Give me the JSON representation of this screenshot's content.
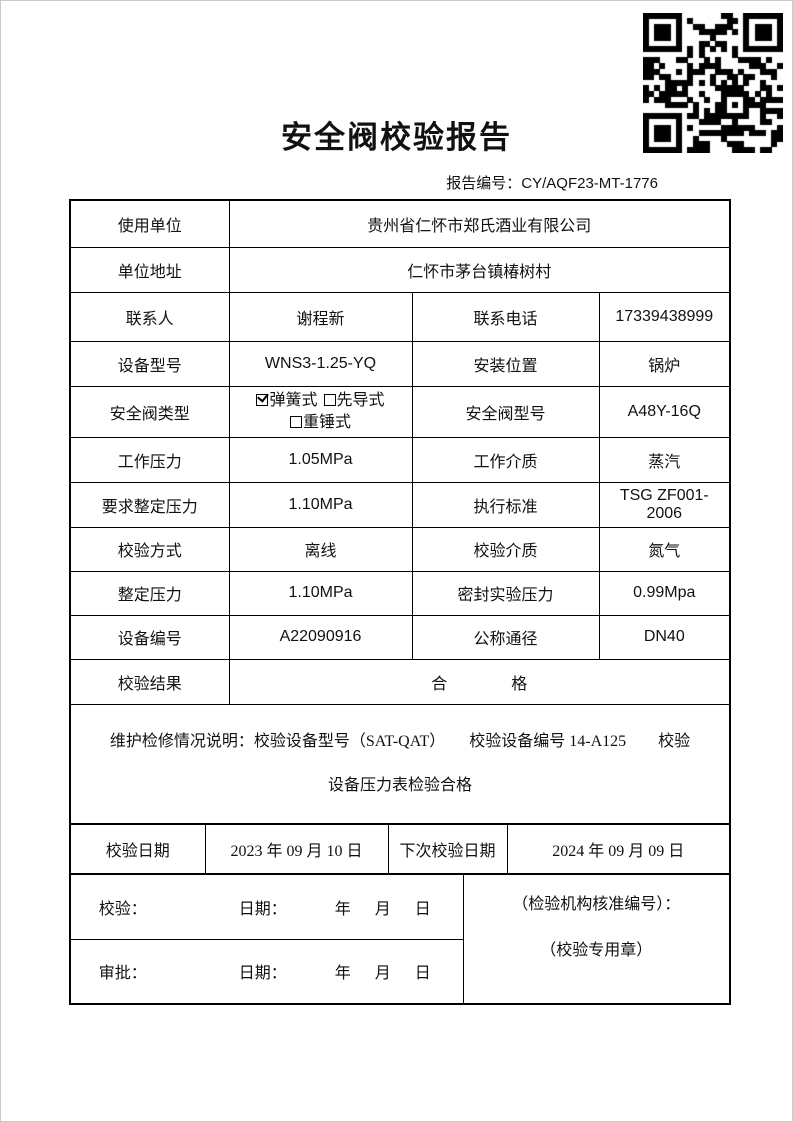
{
  "header": {
    "title": "安全阀校验报告",
    "report_no_label": "报告编号：",
    "report_no": "CY/AQF23-MT-1776",
    "qr_alt": "qr-code"
  },
  "table": {
    "user_unit": {
      "label": "使用单位",
      "value": "贵州省仁怀市郑氏酒业有限公司"
    },
    "address": {
      "label": "单位地址",
      "value": "仁怀市茅台镇椿树村"
    },
    "contact": {
      "label": "联系人",
      "value": "谢程新"
    },
    "phone": {
      "label": "联系电话",
      "value": "17339438999"
    },
    "device_model": {
      "label": "设备型号",
      "value": "WNS3-1.25-YQ"
    },
    "install_pos": {
      "label": "安装位置",
      "value": "锅炉"
    },
    "valve_type": {
      "label": "安全阀类型",
      "options": [
        {
          "label": "弹簧式",
          "checked": true
        },
        {
          "label": "先导式",
          "checked": false
        },
        {
          "label": "重锤式",
          "checked": false
        }
      ]
    },
    "valve_model": {
      "label": "安全阀型号",
      "value": "A48Y-16Q"
    },
    "work_pressure": {
      "label": "工作压力",
      "value": "1.05MPa"
    },
    "work_medium": {
      "label": "工作介质",
      "value": "蒸汽"
    },
    "required_set_pressure": {
      "label": "要求整定压力",
      "value": "1.10MPa"
    },
    "standard": {
      "label": "执行标准",
      "value": "TSG ZF001-2006"
    },
    "calib_method": {
      "label": "校验方式",
      "value": "离线"
    },
    "calib_medium": {
      "label": "校验介质",
      "value": "氮气"
    },
    "set_pressure": {
      "label": "整定压力",
      "value": "1.10MPa"
    },
    "seal_test_pressure": {
      "label": "密封实验压力",
      "value": "0.99Mpa"
    },
    "device_no": {
      "label": "设备编号",
      "value": "A22090916"
    },
    "nominal_diameter": {
      "label": "公称通径",
      "value": "DN40"
    },
    "result": {
      "label": "校验结果",
      "value": "合　　　　格"
    },
    "maintenance_note": {
      "line1": "维护检修情况说明：校验设备型号（SAT-QAT）　　校验设备编号 14-A125　　校验",
      "line2": "设备压力表检验合格"
    },
    "calib_date": {
      "label": "校验日期",
      "value": "2023 年 09 月 10 日"
    },
    "next_calib_date": {
      "label": "下次校验日期",
      "value": "2024 年 09 月 09 日"
    },
    "verifier_label": "校验：",
    "approver_label": "审批：",
    "date_label": "日期：",
    "ymd": "年　月　日",
    "org_code_note": "（检验机构核准编号）：",
    "seal_note": "（校验专用章）"
  },
  "colors": {
    "border": "#000000",
    "text": "#111111",
    "background": "#ffffff"
  }
}
